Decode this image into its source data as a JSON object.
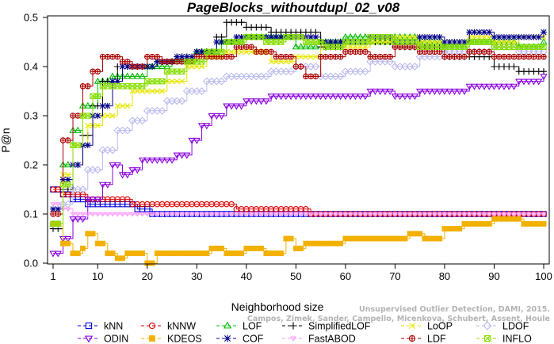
{
  "chart_data": {
    "type": "line",
    "title": "PageBlocks_withoutdupl_02_v08",
    "xlabel": "Neighborhood size",
    "ylabel": "P@n",
    "xlim": [
      1,
      100
    ],
    "ylim": [
      0,
      0.5
    ],
    "xticks": [
      1,
      10,
      20,
      30,
      40,
      50,
      60,
      70,
      80,
      90,
      100
    ],
    "yticks": [
      0.0,
      0.1,
      0.2,
      0.3,
      0.4,
      0.5
    ],
    "grid": false,
    "legend_position": "bottom",
    "watermark": [
      "Unsupervised Outlier Detection, DAMI, 2015.",
      "Campos, Zimek, Sander, Campello, Micenkova, Schubert, Assent, Houle"
    ],
    "series": [
      {
        "name": "kNN",
        "color": "#0000dd",
        "marker": "square",
        "points": [
          [
            1,
            0.15
          ],
          [
            3,
            0.14
          ],
          [
            5,
            0.13
          ],
          [
            8,
            0.12
          ],
          [
            12,
            0.12
          ],
          [
            18,
            0.11
          ],
          [
            21,
            0.1
          ],
          [
            30,
            0.1
          ],
          [
            50,
            0.1
          ],
          [
            70,
            0.1
          ],
          [
            100,
            0.1
          ]
        ]
      },
      {
        "name": "kNNW",
        "color": "#dd0000",
        "marker": "circle",
        "points": [
          [
            1,
            0.15
          ],
          [
            3,
            0.14
          ],
          [
            6,
            0.14
          ],
          [
            8,
            0.13
          ],
          [
            15,
            0.13
          ],
          [
            17,
            0.12
          ],
          [
            30,
            0.12
          ],
          [
            37,
            0.12
          ],
          [
            38,
            0.11
          ],
          [
            52,
            0.11
          ],
          [
            53,
            0.1
          ],
          [
            100,
            0.1
          ]
        ]
      },
      {
        "name": "LOF",
        "color": "#00bb00",
        "marker": "triangle-up",
        "points": [
          [
            1,
            0.08
          ],
          [
            3,
            0.2
          ],
          [
            5,
            0.27
          ],
          [
            7,
            0.32
          ],
          [
            10,
            0.37
          ],
          [
            13,
            0.38
          ],
          [
            16,
            0.38
          ],
          [
            20,
            0.4
          ],
          [
            25,
            0.41
          ],
          [
            30,
            0.43
          ],
          [
            35,
            0.45
          ],
          [
            40,
            0.46
          ],
          [
            45,
            0.46
          ],
          [
            50,
            0.44
          ],
          [
            55,
            0.45
          ],
          [
            60,
            0.46
          ],
          [
            65,
            0.45
          ],
          [
            70,
            0.46
          ],
          [
            75,
            0.45
          ],
          [
            80,
            0.44
          ],
          [
            85,
            0.45
          ],
          [
            90,
            0.45
          ],
          [
            95,
            0.44
          ],
          [
            100,
            0.45
          ]
        ]
      },
      {
        "name": "SimplifiedLOF",
        "color": "#000000",
        "marker": "plus",
        "points": [
          [
            1,
            0.07
          ],
          [
            3,
            0.15
          ],
          [
            5,
            0.2
          ],
          [
            7,
            0.26
          ],
          [
            9,
            0.32
          ],
          [
            11,
            0.37
          ],
          [
            14,
            0.4
          ],
          [
            18,
            0.4
          ],
          [
            22,
            0.41
          ],
          [
            26,
            0.42
          ],
          [
            30,
            0.43
          ],
          [
            34,
            0.46
          ],
          [
            36,
            0.49
          ],
          [
            40,
            0.48
          ],
          [
            45,
            0.47
          ],
          [
            50,
            0.47
          ],
          [
            55,
            0.44
          ],
          [
            60,
            0.45
          ],
          [
            65,
            0.45
          ],
          [
            70,
            0.44
          ],
          [
            75,
            0.44
          ],
          [
            80,
            0.42
          ],
          [
            85,
            0.42
          ],
          [
            90,
            0.4
          ],
          [
            95,
            0.39
          ],
          [
            100,
            0.39
          ]
        ]
      },
      {
        "name": "LoOP",
        "color": "#e6e600",
        "marker": "x",
        "points": [
          [
            1,
            0.08
          ],
          [
            3,
            0.18
          ],
          [
            5,
            0.24
          ],
          [
            8,
            0.28
          ],
          [
            11,
            0.3
          ],
          [
            14,
            0.32
          ],
          [
            17,
            0.35
          ],
          [
            20,
            0.35
          ],
          [
            24,
            0.37
          ],
          [
            28,
            0.4
          ],
          [
            32,
            0.42
          ],
          [
            36,
            0.43
          ],
          [
            40,
            0.43
          ],
          [
            45,
            0.41
          ],
          [
            50,
            0.42
          ],
          [
            55,
            0.45
          ],
          [
            60,
            0.44
          ],
          [
            65,
            0.45
          ],
          [
            70,
            0.46
          ],
          [
            75,
            0.45
          ],
          [
            80,
            0.45
          ],
          [
            85,
            0.46
          ],
          [
            90,
            0.45
          ],
          [
            95,
            0.46
          ],
          [
            100,
            0.46
          ]
        ]
      },
      {
        "name": "LDOF",
        "color": "#bbbbee",
        "marker": "diamond",
        "points": [
          [
            1,
            0.08
          ],
          [
            3,
            0.12
          ],
          [
            5,
            0.15
          ],
          [
            8,
            0.19
          ],
          [
            11,
            0.23
          ],
          [
            14,
            0.27
          ],
          [
            17,
            0.29
          ],
          [
            20,
            0.31
          ],
          [
            24,
            0.33
          ],
          [
            28,
            0.35
          ],
          [
            32,
            0.37
          ],
          [
            36,
            0.38
          ],
          [
            40,
            0.38
          ],
          [
            45,
            0.39
          ],
          [
            50,
            0.4
          ],
          [
            55,
            0.38
          ],
          [
            60,
            0.39
          ],
          [
            65,
            0.41
          ],
          [
            70,
            0.4
          ],
          [
            75,
            0.42
          ],
          [
            80,
            0.43
          ],
          [
            85,
            0.43
          ],
          [
            90,
            0.44
          ],
          [
            95,
            0.43
          ],
          [
            100,
            0.43
          ]
        ]
      },
      {
        "name": "ODIN",
        "color": "#8800dd",
        "marker": "triangle-down",
        "points": [
          [
            1,
            0.02
          ],
          [
            3,
            0.05
          ],
          [
            5,
            0.09
          ],
          [
            8,
            0.13
          ],
          [
            11,
            0.16
          ],
          [
            13,
            0.2
          ],
          [
            15,
            0.18
          ],
          [
            17,
            0.19
          ],
          [
            19,
            0.21
          ],
          [
            22,
            0.21
          ],
          [
            26,
            0.22
          ],
          [
            29,
            0.25
          ],
          [
            31,
            0.28
          ],
          [
            33,
            0.3
          ],
          [
            36,
            0.32
          ],
          [
            40,
            0.33
          ],
          [
            45,
            0.34
          ],
          [
            50,
            0.34
          ],
          [
            55,
            0.34
          ],
          [
            60,
            0.34
          ],
          [
            65,
            0.35
          ],
          [
            70,
            0.34
          ],
          [
            75,
            0.35
          ],
          [
            80,
            0.35
          ],
          [
            85,
            0.36
          ],
          [
            90,
            0.36
          ],
          [
            95,
            0.37
          ],
          [
            100,
            0.38
          ]
        ]
      },
      {
        "name": "KDEOS",
        "color": "#f2b000",
        "marker": "square-filled",
        "points": [
          [
            1,
            0.08
          ],
          [
            3,
            0.04
          ],
          [
            5,
            0.02
          ],
          [
            7,
            0.03
          ],
          [
            8,
            0.06
          ],
          [
            10,
            0.04
          ],
          [
            12,
            0.02
          ],
          [
            14,
            0.01
          ],
          [
            16,
            0.02
          ],
          [
            18,
            0.02
          ],
          [
            20,
            0.0
          ],
          [
            22,
            0.02
          ],
          [
            25,
            0.02
          ],
          [
            30,
            0.02
          ],
          [
            33,
            0.03
          ],
          [
            36,
            0.02
          ],
          [
            40,
            0.03
          ],
          [
            44,
            0.02
          ],
          [
            48,
            0.05
          ],
          [
            50,
            0.03
          ],
          [
            52,
            0.04
          ],
          [
            56,
            0.04
          ],
          [
            60,
            0.05
          ],
          [
            65,
            0.05
          ],
          [
            70,
            0.05
          ],
          [
            73,
            0.06
          ],
          [
            76,
            0.05
          ],
          [
            80,
            0.07
          ],
          [
            84,
            0.08
          ],
          [
            88,
            0.08
          ],
          [
            90,
            0.09
          ],
          [
            93,
            0.09
          ],
          [
            96,
            0.08
          ],
          [
            100,
            0.08
          ]
        ]
      },
      {
        "name": "COF",
        "color": "#000088",
        "marker": "asterisk",
        "points": [
          [
            1,
            0.11
          ],
          [
            3,
            0.17
          ],
          [
            5,
            0.2
          ],
          [
            7,
            0.24
          ],
          [
            9,
            0.3
          ],
          [
            11,
            0.32
          ],
          [
            13,
            0.37
          ],
          [
            15,
            0.4
          ],
          [
            18,
            0.4
          ],
          [
            22,
            0.41
          ],
          [
            26,
            0.42
          ],
          [
            30,
            0.43
          ],
          [
            34,
            0.45
          ],
          [
            38,
            0.46
          ],
          [
            42,
            0.46
          ],
          [
            46,
            0.46
          ],
          [
            50,
            0.46
          ],
          [
            55,
            0.45
          ],
          [
            60,
            0.45
          ],
          [
            65,
            0.46
          ],
          [
            70,
            0.45
          ],
          [
            75,
            0.46
          ],
          [
            80,
            0.45
          ],
          [
            85,
            0.47
          ],
          [
            90,
            0.46
          ],
          [
            95,
            0.46
          ],
          [
            100,
            0.47
          ]
        ]
      },
      {
        "name": "FastABOD",
        "color": "#ff99ff",
        "marker": "triangle-down-small",
        "points": [
          [
            1,
            0.12
          ],
          [
            3,
            0.11
          ],
          [
            5,
            0.1
          ],
          [
            8,
            0.1
          ],
          [
            12,
            0.1
          ],
          [
            15,
            0.1
          ],
          [
            20,
            0.1
          ],
          [
            30,
            0.1
          ],
          [
            40,
            0.1
          ],
          [
            50,
            0.1
          ],
          [
            60,
            0.1
          ],
          [
            70,
            0.1
          ],
          [
            80,
            0.1
          ],
          [
            90,
            0.1
          ],
          [
            100,
            0.1
          ]
        ]
      },
      {
        "name": "LDF",
        "color": "#aa0000",
        "marker": "circle-plus",
        "points": [
          [
            1,
            0.1
          ],
          [
            3,
            0.25
          ],
          [
            5,
            0.3
          ],
          [
            7,
            0.36
          ],
          [
            9,
            0.39
          ],
          [
            11,
            0.42
          ],
          [
            13,
            0.42
          ],
          [
            15,
            0.41
          ],
          [
            17,
            0.4
          ],
          [
            20,
            0.42
          ],
          [
            23,
            0.41
          ],
          [
            26,
            0.41
          ],
          [
            30,
            0.42
          ],
          [
            34,
            0.42
          ],
          [
            38,
            0.44
          ],
          [
            42,
            0.43
          ],
          [
            46,
            0.42
          ],
          [
            50,
            0.4
          ],
          [
            52,
            0.38
          ],
          [
            55,
            0.42
          ],
          [
            60,
            0.43
          ],
          [
            65,
            0.42
          ],
          [
            70,
            0.44
          ],
          [
            75,
            0.43
          ],
          [
            80,
            0.42
          ],
          [
            85,
            0.43
          ],
          [
            90,
            0.42
          ],
          [
            95,
            0.42
          ],
          [
            100,
            0.42
          ]
        ]
      },
      {
        "name": "INFLO",
        "color": "#88dd00",
        "marker": "square-x",
        "points": [
          [
            1,
            0.08
          ],
          [
            3,
            0.16
          ],
          [
            5,
            0.24
          ],
          [
            7,
            0.3
          ],
          [
            9,
            0.34
          ],
          [
            11,
            0.36
          ],
          [
            13,
            0.36
          ],
          [
            16,
            0.36
          ],
          [
            20,
            0.37
          ],
          [
            24,
            0.39
          ],
          [
            28,
            0.41
          ],
          [
            32,
            0.43
          ],
          [
            36,
            0.45
          ],
          [
            40,
            0.46
          ],
          [
            44,
            0.45
          ],
          [
            48,
            0.46
          ],
          [
            52,
            0.45
          ],
          [
            56,
            0.44
          ],
          [
            60,
            0.45
          ],
          [
            65,
            0.46
          ],
          [
            70,
            0.45
          ],
          [
            75,
            0.44
          ],
          [
            80,
            0.44
          ],
          [
            85,
            0.45
          ],
          [
            90,
            0.44
          ],
          [
            95,
            0.44
          ],
          [
            100,
            0.44
          ]
        ]
      }
    ]
  }
}
